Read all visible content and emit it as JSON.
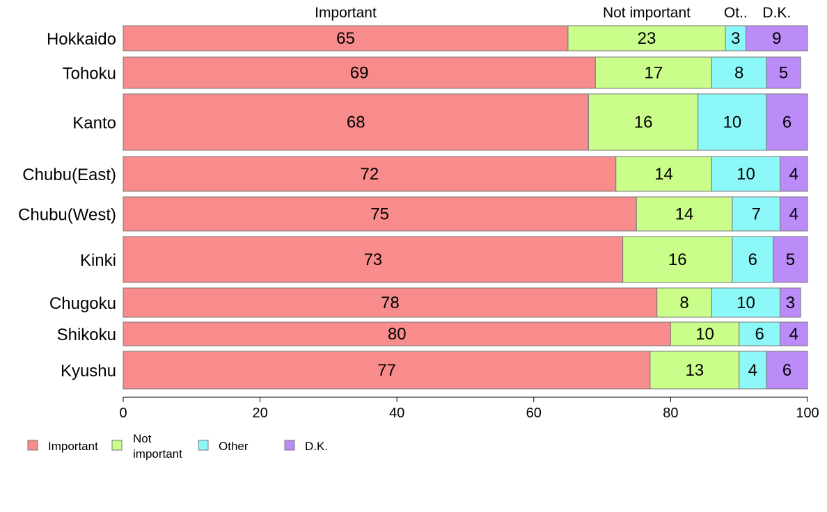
{
  "chart_data": {
    "type": "bar",
    "orientation": "horizontal",
    "stacked": true,
    "percent": true,
    "categories": [
      "Hokkaido",
      "Tohoku",
      "Kanto",
      "Chubu(East)",
      "Chubu(West)",
      "Kinki",
      "Chugoku",
      "Shikoku",
      "Kyushu"
    ],
    "series": [
      {
        "name": "Important",
        "color": "#f88b8b",
        "values": [
          65,
          69,
          68,
          72,
          75,
          73,
          78,
          80,
          77
        ]
      },
      {
        "name": "Not important",
        "color": "#cbfd8a",
        "values": [
          23,
          17,
          16,
          14,
          14,
          16,
          8,
          10,
          13
        ]
      },
      {
        "name": "Other",
        "color": "#8cf8f8",
        "values": [
          3,
          8,
          10,
          10,
          7,
          6,
          10,
          6,
          4
        ]
      },
      {
        "name": "D.K.",
        "color": "#bb8bf8",
        "values": [
          9,
          5,
          6,
          4,
          4,
          5,
          3,
          4,
          6
        ]
      }
    ],
    "column_headers": [
      "Important",
      "Not important",
      "Ot..",
      "D.K."
    ],
    "xlim": [
      0,
      100
    ],
    "xticks": [
      0,
      20,
      40,
      60,
      80,
      100
    ],
    "legend": {
      "placement": "bottom-left",
      "labels": [
        "Important",
        "Not important",
        "Other",
        "D.K."
      ]
    },
    "grid": false
  }
}
